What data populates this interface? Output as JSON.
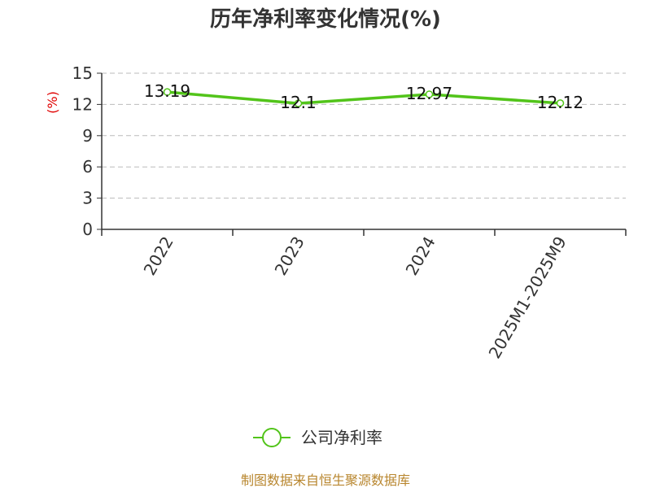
{
  "chart_data": {
    "type": "line",
    "title": "历年净利率变化情况(%)",
    "xlabel": "",
    "ylabel": "(%)",
    "categories": [
      "2022",
      "2023",
      "2024",
      "2025M1-2025M9"
    ],
    "series": [
      {
        "name": "公司净利率",
        "values": [
          13.19,
          12.1,
          12.97,
          12.12
        ],
        "labels": [
          "13.19",
          "12.1",
          "12.97",
          "12.12"
        ],
        "color": "#52c41a"
      }
    ],
    "ylim": [
      0,
      15
    ],
    "yticks": [
      0,
      3,
      6,
      9,
      12,
      15
    ],
    "grid": true,
    "legend_position": "bottom"
  },
  "source": "制图数据来自恒生聚源数据库",
  "colors": {
    "axis": "#333333",
    "grid": "#bbbbbb",
    "ylabel": "#e00000",
    "source": "#b8862e"
  }
}
